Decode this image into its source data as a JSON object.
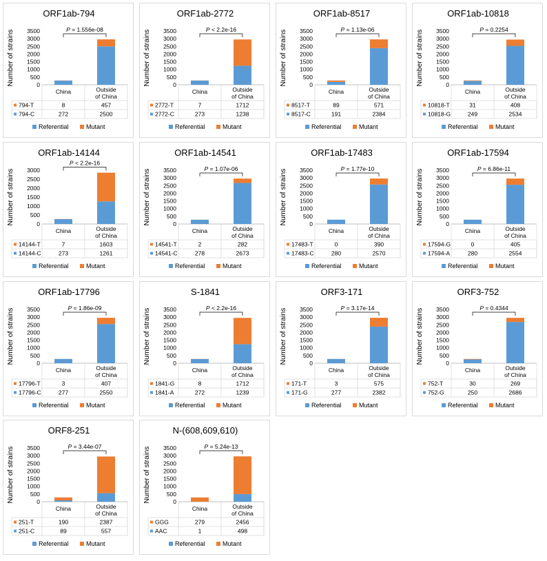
{
  "colors": {
    "referential": "#5b9bd5",
    "mutant": "#ed7d31",
    "grid_line": "#d9d9d9",
    "axis": "#bfbfbf"
  },
  "ylabel": "Number of strains",
  "columns": [
    "China",
    "Outside of China"
  ],
  "legend": [
    "Referential",
    "Mutant"
  ],
  "chart_data": [
    {
      "type": "bar",
      "stacked": true,
      "title": "ORF1ab-794",
      "ylim": [
        0,
        3500
      ],
      "yticks": [
        0,
        500,
        1000,
        1500,
        2000,
        2500,
        3000,
        3500
      ],
      "categories": [
        "China",
        "Outside of China"
      ],
      "p": "= 1.556e-08",
      "series": [
        {
          "name": "794-T",
          "values": [
            8,
            457
          ],
          "color": "mutant"
        },
        {
          "name": "794-C",
          "values": [
            272,
            2500
          ],
          "color": "referential"
        }
      ],
      "legend": [
        "Referential",
        "Mutant"
      ]
    },
    {
      "type": "bar",
      "stacked": true,
      "title": "ORF1ab-2772",
      "ylim": [
        0,
        3500
      ],
      "yticks": [
        0,
        500,
        1000,
        1500,
        2000,
        2500,
        3000,
        3500
      ],
      "categories": [
        "China",
        "Outside of China"
      ],
      "p": "< 2.2e-16",
      "series": [
        {
          "name": "2772-T",
          "values": [
            7,
            1712
          ],
          "color": "mutant"
        },
        {
          "name": "2772-C",
          "values": [
            273,
            1238
          ],
          "color": "referential"
        }
      ],
      "legend": [
        "Referential",
        "Mutant"
      ]
    },
    {
      "type": "bar",
      "stacked": true,
      "title": "ORF1ab-8517",
      "ylim": [
        0,
        3500
      ],
      "yticks": [
        0,
        500,
        1000,
        1500,
        2000,
        2500,
        3000,
        3500
      ],
      "categories": [
        "China",
        "Outside of China"
      ],
      "p": "= 1.13e-06",
      "series": [
        {
          "name": "8517-T",
          "values": [
            89,
            571
          ],
          "color": "mutant"
        },
        {
          "name": "8517-C",
          "values": [
            191,
            2384
          ],
          "color": "referential"
        }
      ],
      "legend": [
        "Referential",
        "Mutant"
      ]
    },
    {
      "type": "bar",
      "stacked": true,
      "title": "ORF1ab-10818",
      "ylim": [
        0,
        3500
      ],
      "yticks": [
        0,
        500,
        1000,
        1500,
        2000,
        2500,
        3000,
        3500
      ],
      "categories": [
        "China",
        "Outside of China"
      ],
      "p": "= 0.2254",
      "series": [
        {
          "name": "10818-T",
          "values": [
            31,
            408
          ],
          "color": "mutant"
        },
        {
          "name": "10818-G",
          "values": [
            249,
            2534
          ],
          "color": "referential"
        }
      ],
      "legend": [
        "Referential",
        "Mutant"
      ]
    },
    {
      "type": "bar",
      "stacked": true,
      "title": "ORF1ab-14144",
      "ylim": [
        0,
        3000
      ],
      "yticks": [
        0,
        500,
        1000,
        1500,
        2000,
        2500,
        3000
      ],
      "categories": [
        "China",
        "Outside of China"
      ],
      "p": "< 2.2e-16",
      "series": [
        {
          "name": "14144-T",
          "values": [
            7,
            1603
          ],
          "color": "mutant"
        },
        {
          "name": "14144-C",
          "values": [
            273,
            1261
          ],
          "color": "referential"
        }
      ],
      "legend": [
        "Referential",
        "Mutant"
      ]
    },
    {
      "type": "bar",
      "stacked": true,
      "title": "ORF1ab-14541",
      "ylim": [
        0,
        3500
      ],
      "yticks": [
        0,
        500,
        1000,
        1500,
        2000,
        2500,
        3000,
        3500
      ],
      "categories": [
        "China",
        "Outside of China"
      ],
      "p": "= 1.07e-06",
      "series": [
        {
          "name": "14541-T",
          "values": [
            2,
            282
          ],
          "color": "mutant"
        },
        {
          "name": "14541-C",
          "values": [
            278,
            2673
          ],
          "color": "referential"
        }
      ],
      "legend": [
        "Referential",
        "Mutant"
      ]
    },
    {
      "type": "bar",
      "stacked": true,
      "title": "ORF1ab-17483",
      "ylim": [
        0,
        3500
      ],
      "yticks": [
        0,
        500,
        1000,
        1500,
        2000,
        2500,
        3000,
        3500
      ],
      "categories": [
        "China",
        "Outside of China"
      ],
      "p": "= 1.77e-10",
      "series": [
        {
          "name": "17483-T",
          "values": [
            0,
            390
          ],
          "color": "mutant"
        },
        {
          "name": "17483-C",
          "values": [
            280,
            2570
          ],
          "color": "referential"
        }
      ],
      "legend": [
        "Referential",
        "Mutant"
      ]
    },
    {
      "type": "bar",
      "stacked": true,
      "title": "ORF1ab-17594",
      "ylim": [
        0,
        3500
      ],
      "yticks": [
        0,
        500,
        1000,
        1500,
        2000,
        2500,
        3000,
        3500
      ],
      "categories": [
        "China",
        "Outside of China"
      ],
      "p": "= 6.86e-11",
      "series": [
        {
          "name": "17594-G",
          "values": [
            0,
            405
          ],
          "color": "mutant"
        },
        {
          "name": "17594-A",
          "values": [
            280,
            2554
          ],
          "color": "referential"
        }
      ],
      "legend": [
        "Referential",
        "Mutant"
      ]
    },
    {
      "type": "bar",
      "stacked": true,
      "title": "ORF1ab-17796",
      "ylim": [
        0,
        3500
      ],
      "yticks": [
        0,
        500,
        1000,
        1500,
        2000,
        2500,
        3000,
        3500
      ],
      "categories": [
        "China",
        "Outside of China"
      ],
      "p": "= 1.86e-09",
      "series": [
        {
          "name": "17796-T",
          "values": [
            3,
            407
          ],
          "color": "mutant"
        },
        {
          "name": "17796-C",
          "values": [
            277,
            2550
          ],
          "color": "referential"
        }
      ],
      "legend": [
        "Referential",
        "Mutant"
      ]
    },
    {
      "type": "bar",
      "stacked": true,
      "title": "S-1841",
      "ylim": [
        0,
        3500
      ],
      "yticks": [
        0,
        500,
        1000,
        1500,
        2000,
        2500,
        3000,
        3500
      ],
      "categories": [
        "China",
        "Outside of China"
      ],
      "p": "< 2.2e-16",
      "series": [
        {
          "name": "1841-G",
          "values": [
            8,
            1712
          ],
          "color": "mutant"
        },
        {
          "name": "1841-A",
          "values": [
            272,
            1239
          ],
          "color": "referential"
        }
      ],
      "legend": [
        "Referential",
        "Mutant"
      ]
    },
    {
      "type": "bar",
      "stacked": true,
      "title": "ORF3-171",
      "ylim": [
        0,
        3500
      ],
      "yticks": [
        0,
        500,
        1000,
        1500,
        2000,
        2500,
        3000,
        3500
      ],
      "categories": [
        "China",
        "Outside of China"
      ],
      "p": "= 3.17e-14",
      "series": [
        {
          "name": "171-T",
          "values": [
            3,
            575
          ],
          "color": "mutant"
        },
        {
          "name": "171-G",
          "values": [
            277,
            2382
          ],
          "color": "referential"
        }
      ],
      "legend": [
        "Referential",
        "Mutant"
      ]
    },
    {
      "type": "bar",
      "stacked": true,
      "title": "ORF3-752",
      "ylim": [
        0,
        3500
      ],
      "yticks": [
        0,
        500,
        1000,
        1500,
        2000,
        2500,
        3000,
        3500
      ],
      "categories": [
        "China",
        "Outside of China"
      ],
      "p": "= 0.4344",
      "series": [
        {
          "name": "752-T",
          "values": [
            30,
            269
          ],
          "color": "mutant"
        },
        {
          "name": "752-G",
          "values": [
            250,
            2686
          ],
          "color": "referential"
        }
      ],
      "legend": [
        "Referential",
        "Mutant"
      ]
    },
    {
      "type": "bar",
      "stacked": true,
      "title": "ORF8-251",
      "ylim": [
        0,
        3500
      ],
      "yticks": [
        0,
        500,
        1000,
        1500,
        2000,
        2500,
        3000,
        3500
      ],
      "categories": [
        "China",
        "Outside of China"
      ],
      "p": "= 3.44e-07",
      "series": [
        {
          "name": "251-T",
          "values": [
            190,
            2387
          ],
          "color": "mutant"
        },
        {
          "name": "251-C",
          "values": [
            89,
            557
          ],
          "color": "referential"
        }
      ],
      "legend": [
        "Referential",
        "Mutant"
      ]
    },
    {
      "type": "bar",
      "stacked": true,
      "title": "N-(608,609,610)",
      "ylim": [
        0,
        3500
      ],
      "yticks": [
        0,
        500,
        1000,
        1500,
        2000,
        2500,
        3000,
        3500
      ],
      "categories": [
        "China",
        "Outside of China"
      ],
      "p": "= 5.24e-13",
      "series": [
        {
          "name": "GGG",
          "values": [
            279,
            2456
          ],
          "color": "mutant"
        },
        {
          "name": "AAC",
          "values": [
            1,
            498
          ],
          "color": "referential"
        }
      ],
      "legend": [
        "Referential",
        "Mutant"
      ]
    }
  ]
}
